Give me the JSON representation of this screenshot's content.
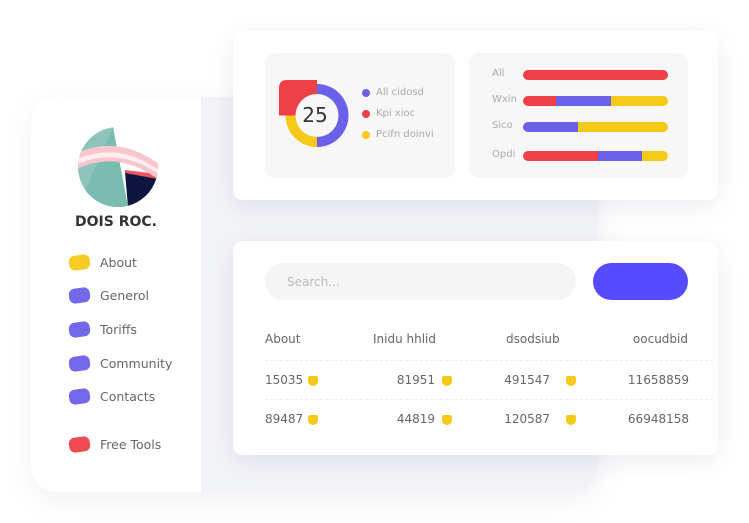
{
  "sidebar": {
    "brand": "DOIS ROC.",
    "items": [
      {
        "label": "About",
        "color": "#f5c918"
      },
      {
        "label": "Generol",
        "color": "#6b60e8"
      },
      {
        "label": "Toriffs",
        "color": "#6b60e8"
      },
      {
        "label": "Community",
        "color": "#6b60e8"
      },
      {
        "label": "Contacts",
        "color": "#6b60e8"
      },
      {
        "label": "Free Tools",
        "color": "#ee4046"
      }
    ]
  },
  "donut": {
    "value": "25",
    "legend": [
      {
        "label": "All cidosd",
        "color": "#6b60e8"
      },
      {
        "label": "Kpi xioc",
        "color": "#ee4046"
      },
      {
        "label": "Pcifn doinvi",
        "color": "#f5c918"
      }
    ]
  },
  "bars": [
    {
      "label": "All",
      "segments": [
        {
          "color": "#ee4046",
          "pct": 100
        }
      ]
    },
    {
      "label": "Wxin",
      "segments": [
        {
          "color": "#ee4046",
          "pct": 23
        },
        {
          "color": "#6b60e8",
          "pct": 38
        },
        {
          "color": "#f5c918",
          "pct": 39
        }
      ]
    },
    {
      "label": "Sico",
      "segments": [
        {
          "color": "#6b60e8",
          "pct": 38
        },
        {
          "color": "#f5c918",
          "pct": 62
        }
      ]
    },
    {
      "label": "Opdi",
      "segments": [
        {
          "color": "#ee4046",
          "pct": 52
        },
        {
          "color": "#6b60e8",
          "pct": 30
        },
        {
          "color": "#f5c918",
          "pct": 18
        }
      ]
    }
  ],
  "search": {
    "placeholder": "Search..."
  },
  "table": {
    "headers": [
      "About",
      "Inidu hhlid",
      "dsodsiub",
      "oocudbid"
    ],
    "rows": [
      [
        "15035",
        "81951",
        "491547",
        "11658859"
      ],
      [
        "89487",
        "44819",
        "120587",
        "66948158"
      ]
    ]
  },
  "colors": {
    "accent": "#574bff",
    "red": "#ee4046",
    "purple": "#6b60e8",
    "yellow": "#f5c918"
  }
}
